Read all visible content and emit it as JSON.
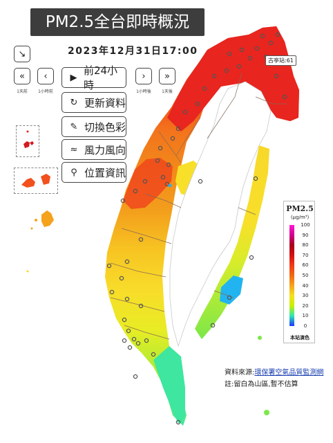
{
  "header": {
    "title": "PM2.5全台即時概況",
    "datetime": "2023年12月31日17:00"
  },
  "controls": {
    "collapse_icon": "arrow-down-right-icon",
    "nav": [
      {
        "glyph": "«",
        "label": "1天前",
        "icon": "double-chevron-left-icon"
      },
      {
        "glyph": "‹",
        "label": "1小時前",
        "icon": "chevron-left-icon"
      },
      {
        "glyph": "›",
        "label": "1小時後",
        "icon": "chevron-right-icon"
      },
      {
        "glyph": "»",
        "label": "1天後",
        "icon": "double-chevron-right-icon"
      }
    ],
    "buttons": [
      {
        "label": "前24小時",
        "icon": "play-circle-icon",
        "glyph": "▶"
      },
      {
        "label": "更新資料",
        "icon": "refresh-icon",
        "glyph": "↻"
      },
      {
        "label": "切換色彩",
        "icon": "brush-icon",
        "glyph": "✎"
      },
      {
        "label": "風力風向",
        "icon": "wind-icon",
        "glyph": "≈"
      },
      {
        "label": "位置資訊",
        "icon": "map-pin-icon",
        "glyph": "⚲"
      }
    ]
  },
  "map": {
    "tooltip": "古亭站:61",
    "colors": {
      "north": "#e8251e",
      "west": "#f5a21c",
      "central": "#f8d62a",
      "south": "#c8ec24",
      "east": "#f8e82a",
      "blue": "#22b4f0",
      "green": "#3ee6a0"
    }
  },
  "legend": {
    "title": "PM2.5",
    "unit": "(μg/m³)",
    "ticks": [
      "100",
      "90",
      "80",
      "70",
      "60",
      "50",
      "40",
      "30",
      "20",
      "10",
      "0"
    ],
    "footer": "本站演色"
  },
  "footer": {
    "source_prefix": "資料來源:",
    "source_link": "環保署空氣品質監測網",
    "note": "註:留白為山區,暫不估算"
  }
}
